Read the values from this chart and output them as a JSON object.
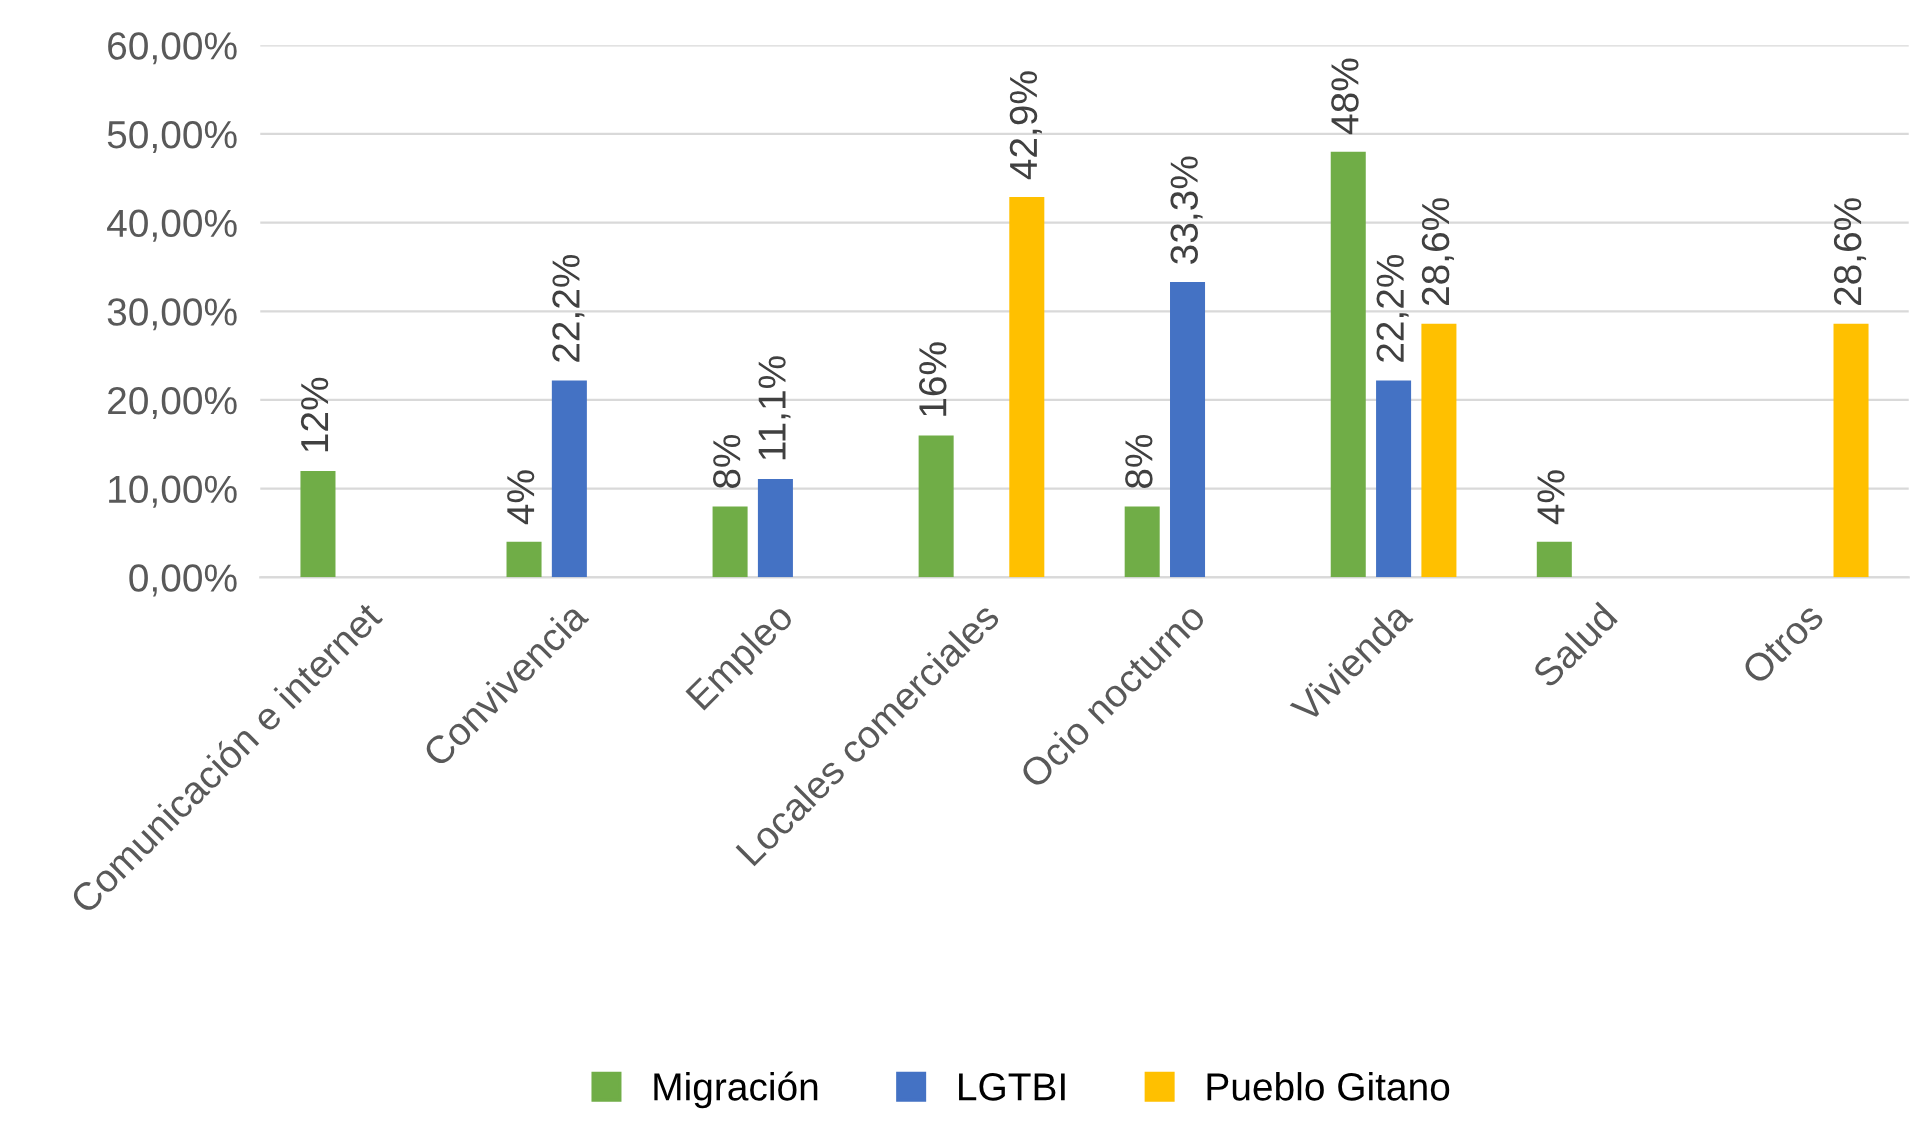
{
  "chart_data": {
    "type": "bar",
    "categories": [
      "Comunicación e internet",
      "Convivencia",
      "Empleo",
      "Locales comerciales",
      "Ocio nocturno",
      "Vivienda",
      "Salud",
      "Otros"
    ],
    "series": [
      {
        "name": "Migración",
        "color": "#70ad47",
        "values": [
          12,
          4,
          8,
          16,
          8,
          48,
          4,
          null
        ],
        "value_labels": [
          "12%",
          "4%",
          "8%",
          "16%",
          "8%",
          "48%",
          "4%",
          null
        ]
      },
      {
        "name": "LGTBI",
        "color": "#4472c4",
        "values": [
          null,
          22.2,
          11.1,
          null,
          33.3,
          22.2,
          null,
          null
        ],
        "value_labels": [
          null,
          "22,2%",
          "11,1%",
          null,
          "33,3%",
          "22,2%",
          null,
          null
        ]
      },
      {
        "name": "Pueblo Gitano",
        "color": "#ffc000",
        "values": [
          null,
          null,
          null,
          42.9,
          null,
          28.6,
          null,
          28.6
        ],
        "value_labels": [
          null,
          null,
          null,
          "42,9%",
          null,
          "28,6%",
          null,
          "28,6%"
        ]
      }
    ],
    "ylim": [
      0,
      60
    ],
    "yticks": [
      {
        "value": 0,
        "label": "0,00%"
      },
      {
        "value": 10,
        "label": "10,00%"
      },
      {
        "value": 20,
        "label": "20,00%"
      },
      {
        "value": 30,
        "label": "30,00%"
      },
      {
        "value": 40,
        "label": "40,00%"
      },
      {
        "value": 50,
        "label": "50,00%"
      },
      {
        "value": 60,
        "label": "60,00%"
      }
    ],
    "grid": "y",
    "legend": "bottom"
  }
}
